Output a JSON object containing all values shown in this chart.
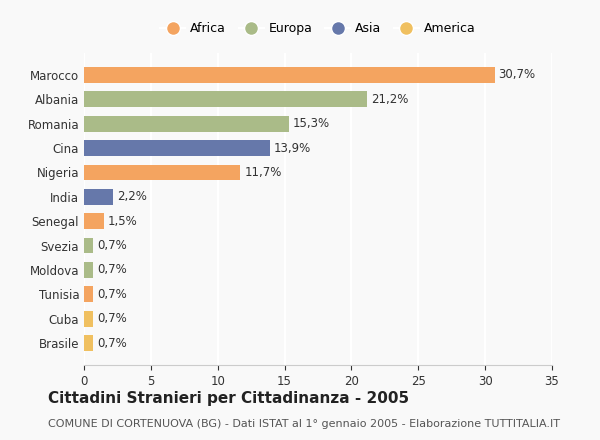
{
  "countries": [
    "Marocco",
    "Albania",
    "Romania",
    "Cina",
    "Nigeria",
    "India",
    "Senegal",
    "Svezia",
    "Moldova",
    "Tunisia",
    "Cuba",
    "Brasile"
  ],
  "values": [
    30.7,
    21.2,
    15.3,
    13.9,
    11.7,
    2.2,
    1.5,
    0.7,
    0.7,
    0.7,
    0.7,
    0.7
  ],
  "labels": [
    "30,7%",
    "21,2%",
    "15,3%",
    "13,9%",
    "11,7%",
    "2,2%",
    "1,5%",
    "0,7%",
    "0,7%",
    "0,7%",
    "0,7%",
    "0,7%"
  ],
  "continents": [
    "Africa",
    "Europa",
    "Europa",
    "Asia",
    "Africa",
    "Asia",
    "Africa",
    "Europa",
    "Europa",
    "Africa",
    "America",
    "America"
  ],
  "colors": {
    "Africa": "#F4A460",
    "Europa": "#AABB88",
    "Asia": "#6678AA",
    "America": "#F0C060"
  },
  "legend_order": [
    "Africa",
    "Europa",
    "Asia",
    "America"
  ],
  "title": "Cittadini Stranieri per Cittadinanza - 2005",
  "subtitle": "COMUNE DI CORTENUOVA (BG) - Dati ISTAT al 1° gennaio 2005 - Elaborazione TUTTITALIA.IT",
  "xlim": [
    0,
    35
  ],
  "xticks": [
    0,
    5,
    10,
    15,
    20,
    25,
    30,
    35
  ],
  "background_color": "#f9f9f9",
  "grid_color": "#ffffff",
  "title_fontsize": 11,
  "subtitle_fontsize": 8,
  "label_fontsize": 8.5,
  "tick_fontsize": 8.5
}
